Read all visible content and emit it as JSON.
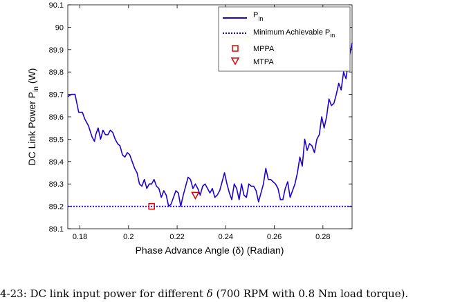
{
  "caption": {
    "prefix": "4-23: DC link input power for different ",
    "symbol": "δ",
    "suffix": " (700 RPM with 0.8 Nm load torque)."
  },
  "chart_data": {
    "type": "line",
    "xlabel": "Phase Advance Angle (δ) (Radian)",
    "ylabel_main": "DC Link Power P",
    "ylabel_sub": "in",
    "ylabel_unit": "(W)",
    "xlim": [
      0.175,
      0.292
    ],
    "ylim": [
      89.1,
      90.1
    ],
    "xticks": [
      0.18,
      0.2,
      0.22,
      0.24,
      0.26,
      0.28
    ],
    "xtick_labels": [
      "0.18",
      "0.2",
      "0.22",
      "0.24",
      "0.26",
      "0.28"
    ],
    "yticks": [
      89.1,
      89.2,
      89.3,
      89.4,
      89.5,
      89.6,
      89.7,
      89.8,
      89.9,
      90.0,
      90.1
    ],
    "ytick_labels": [
      "89.1",
      "89.2",
      "89.3",
      "89.4",
      "89.5",
      "89.6",
      "89.7",
      "89.8",
      "89.9",
      "90",
      "90.1"
    ],
    "grid": false,
    "legend_position": "top-right",
    "line_color": "#2200cc",
    "marker_color": "#dd0000",
    "series": [
      {
        "label_main": "P",
        "label_sub": "in",
        "style": "solid",
        "x": [
          0.175,
          0.1765,
          0.178,
          0.1795,
          0.181,
          0.182,
          0.1835,
          0.185,
          0.186,
          0.1865,
          0.1875,
          0.1885,
          0.1895,
          0.1905,
          0.1915,
          0.1925,
          0.1935,
          0.1945,
          0.1955,
          0.1965,
          0.1975,
          0.1985,
          0.1995,
          0.2005,
          0.2015,
          0.2025,
          0.2035,
          0.2045,
          0.2055,
          0.2065,
          0.2075,
          0.2085,
          0.2095,
          0.2105,
          0.2115,
          0.2125,
          0.2135,
          0.2145,
          0.2155,
          0.2165,
          0.2175,
          0.2185,
          0.2195,
          0.2205,
          0.2215,
          0.2225,
          0.2235,
          0.2245,
          0.2255,
          0.2265,
          0.2275,
          0.2285,
          0.2295,
          0.2305,
          0.2315,
          0.2325,
          0.2335,
          0.2345,
          0.2355,
          0.2365,
          0.2375,
          0.2385,
          0.2395,
          0.2405,
          0.2415,
          0.2425,
          0.2435,
          0.2445,
          0.2455,
          0.2465,
          0.2475,
          0.2485,
          0.2495,
          0.2505,
          0.2515,
          0.2525,
          0.2535,
          0.2545,
          0.2555,
          0.2565,
          0.2575,
          0.2585,
          0.2595,
          0.2605,
          0.2615,
          0.2625,
          0.2635,
          0.2645,
          0.2655,
          0.2665,
          0.2675,
          0.2685,
          0.2695,
          0.2705,
          0.2715,
          0.2725,
          0.2735,
          0.2745,
          0.2755,
          0.2765,
          0.2775,
          0.2785,
          0.2795,
          0.2805,
          0.2815,
          0.2825,
          0.2835,
          0.2845,
          0.2855,
          0.2865,
          0.2875,
          0.2885,
          0.2895,
          0.2905,
          0.292
        ],
        "y": [
          89.69,
          89.7,
          89.7,
          89.62,
          89.62,
          89.59,
          89.56,
          89.51,
          89.49,
          89.52,
          89.55,
          89.5,
          89.54,
          89.52,
          89.52,
          89.54,
          89.53,
          89.5,
          89.48,
          89.47,
          89.43,
          89.42,
          89.44,
          89.43,
          89.4,
          89.37,
          89.35,
          89.3,
          89.29,
          89.32,
          89.28,
          89.3,
          89.3,
          89.32,
          89.29,
          89.28,
          89.24,
          89.27,
          89.25,
          89.2,
          89.21,
          89.24,
          89.27,
          89.26,
          89.2,
          89.25,
          89.29,
          89.33,
          89.32,
          89.28,
          89.3,
          89.28,
          89.25,
          89.29,
          89.3,
          89.28,
          89.26,
          89.28,
          89.24,
          89.25,
          89.27,
          89.31,
          89.35,
          89.3,
          89.26,
          89.23,
          89.3,
          89.28,
          89.23,
          89.3,
          89.25,
          89.24,
          89.3,
          89.29,
          89.29,
          89.27,
          89.22,
          89.26,
          89.3,
          89.37,
          89.32,
          89.32,
          89.31,
          89.3,
          89.28,
          89.23,
          89.23,
          89.28,
          89.31,
          89.24,
          89.27,
          89.3,
          89.35,
          89.42,
          89.38,
          89.5,
          89.45,
          89.48,
          89.47,
          89.44,
          89.5,
          89.52,
          89.6,
          89.55,
          89.6,
          89.68,
          89.65,
          89.66,
          89.7,
          89.75,
          89.72,
          89.8,
          89.77,
          89.85,
          89.93
        ]
      },
      {
        "label_main": "Minimum Achievable P",
        "label_sub": "in",
        "style": "dotted",
        "x": [
          0.175,
          0.292
        ],
        "y": [
          89.2,
          89.2
        ]
      }
    ],
    "markers": [
      {
        "label": "MPPA",
        "shape": "square",
        "x": 0.2095,
        "y": 89.2
      },
      {
        "label": "MTPA",
        "shape": "triangle-down",
        "x": 0.2275,
        "y": 89.25
      }
    ]
  }
}
